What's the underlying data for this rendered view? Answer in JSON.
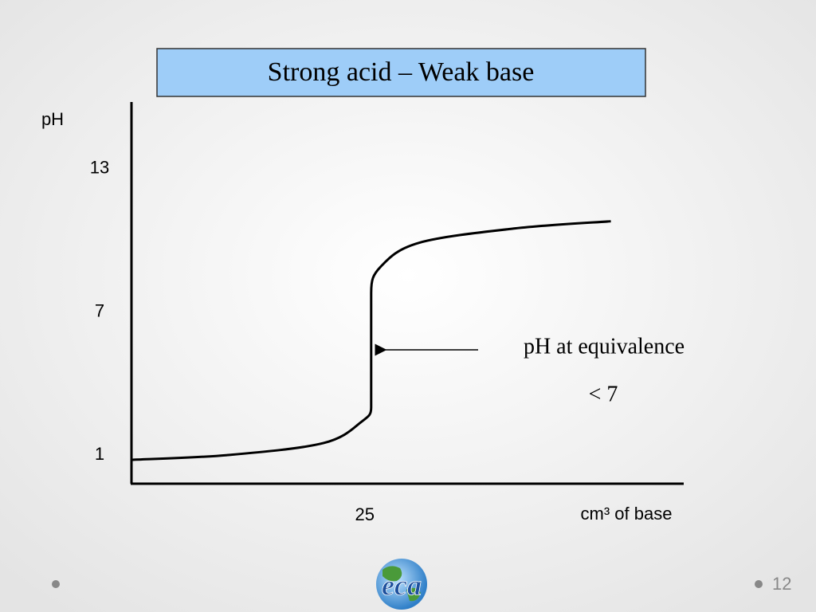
{
  "chart_data": {
    "type": "line",
    "title": "Strong acid – Weak base",
    "y_label": "pH",
    "x_label": "cm³ of base",
    "x": [
      0,
      10,
      20,
      24,
      25,
      25,
      26,
      30,
      40,
      50
    ],
    "series": [
      {
        "color": "#000000",
        "values": [
          0.8,
          1.0,
          1.5,
          2.4,
          3.0,
          7.8,
          8.9,
          9.9,
          10.5,
          10.8
        ]
      }
    ],
    "xlim": [
      0,
      57.6
    ],
    "ylim": [
      -0.2,
      15.8
    ],
    "xticks": [
      25
    ],
    "yticks": [
      1,
      7,
      13
    ],
    "annotations": [
      "pH at equivalence",
      "< 7"
    ],
    "page_number": "12",
    "logo_text": "eca"
  }
}
